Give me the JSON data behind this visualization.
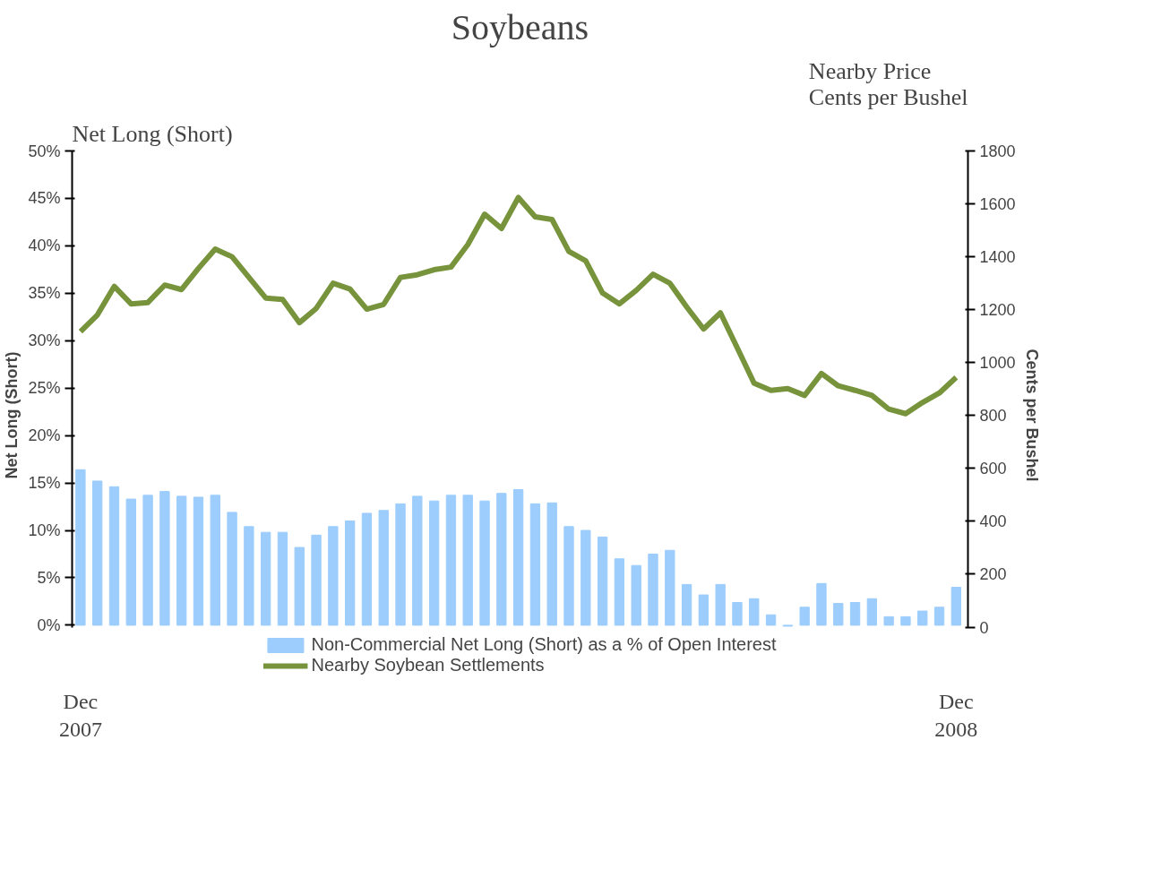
{
  "chart_data": {
    "type": "bar",
    "title": "Soybeans",
    "ylabel": "Net Long (Short)",
    "y2label": "Cents per Bushel",
    "annotations": [
      "Net Long (Short)",
      "Nearby Price\nCents per Bushel"
    ],
    "categories": [
      "Dec\n2007",
      null,
      null,
      null,
      null,
      null,
      null,
      null,
      null,
      null,
      null,
      null,
      null,
      null,
      null,
      null,
      null,
      null,
      null,
      null,
      null,
      null,
      null,
      null,
      null,
      null,
      null,
      null,
      null,
      null,
      null,
      null,
      null,
      null,
      null,
      null,
      null,
      null,
      null,
      null,
      null,
      null,
      null,
      null,
      null,
      null,
      null,
      null,
      null,
      null,
      null,
      null,
      "Dec\n2008"
    ],
    "series": [
      {
        "name": "Non-Commercial Net Long (Short) as a % of Open Interest",
        "color": "#9dcdfc",
        "values": [
          16.4,
          15.2,
          14.6,
          13.3,
          13.7,
          14.1,
          13.6,
          13.5,
          13.7,
          11.9,
          10.4,
          9.8,
          9.8,
          8.2,
          9.5,
          10.4,
          11.0,
          11.8,
          12.1,
          12.8,
          13.6,
          13.1,
          13.7,
          13.7,
          13.1,
          13.9,
          14.3,
          12.8,
          12.9,
          10.4,
          10.0,
          9.3,
          7.0,
          6.3,
          7.5,
          7.9,
          4.3,
          3.2,
          4.3,
          2.4,
          2.8,
          1.1,
          -0.1,
          1.9,
          4.4,
          2.3,
          2.4,
          2.8,
          0.9,
          0.9,
          1.5,
          1.9,
          4.0
        ]
      },
      {
        "name": "Nearby Soybean Settlements",
        "type": "line",
        "axis": "y2",
        "color": "#77933c",
        "values": [
          1117,
          1180,
          1288,
          1222,
          1227,
          1293,
          1276,
          1356,
          1429,
          1400,
          1322,
          1244,
          1239,
          1151,
          1205,
          1300,
          1278,
          1202,
          1220,
          1322,
          1332,
          1351,
          1361,
          1446,
          1561,
          1507,
          1624,
          1551,
          1541,
          1420,
          1385,
          1263,
          1222,
          1273,
          1334,
          1300,
          1210,
          1127,
          1188,
          1056,
          922,
          895,
          902,
          876,
          959,
          912,
          895,
          876,
          824,
          807,
          849,
          885,
          944
        ]
      }
    ],
    "ylim": [
      -0.2,
      50
    ],
    "yticks": [
      {
        "value": 0,
        "label": "0%"
      },
      {
        "value": 5,
        "label": "5%"
      },
      {
        "value": 10,
        "label": "10%"
      },
      {
        "value": 15,
        "label": "15%"
      },
      {
        "value": 20,
        "label": "20%"
      },
      {
        "value": 25,
        "label": "25%"
      },
      {
        "value": 30,
        "label": "30%"
      },
      {
        "value": 35,
        "label": "35%"
      },
      {
        "value": 40,
        "label": "40%"
      },
      {
        "value": 45,
        "label": "45%"
      },
      {
        "value": 50,
        "label": "50%"
      }
    ],
    "y2lim": [
      0,
      1800
    ],
    "y2ticks": [
      0,
      200,
      400,
      600,
      800,
      1000,
      1200,
      1400,
      1600,
      1800
    ],
    "grid": false,
    "legend": "bottom",
    "line_style": "solid",
    "marker": "none"
  }
}
